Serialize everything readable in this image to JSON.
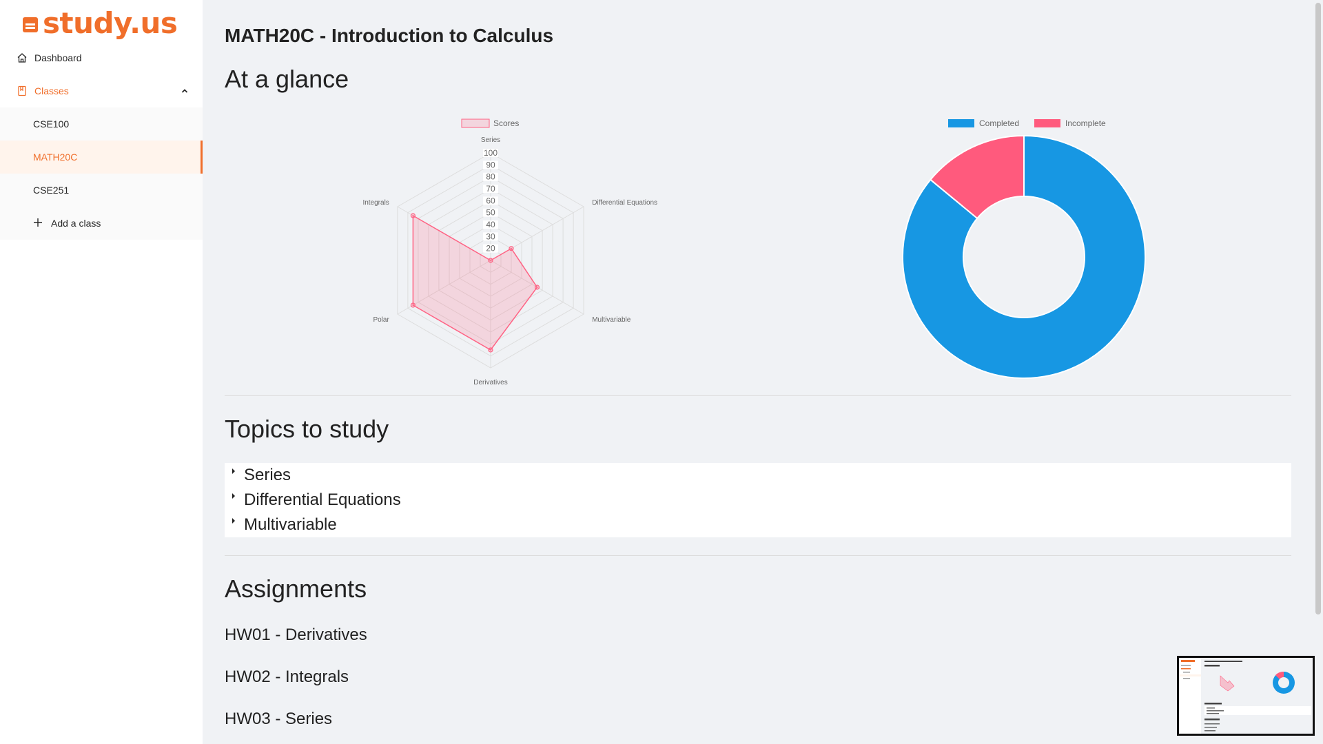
{
  "brand": {
    "name": "study.us",
    "color": "#f06e2a"
  },
  "sidebar": {
    "dashboard_label": "Dashboard",
    "classes_label": "Classes",
    "classes": [
      {
        "label": "CSE100"
      },
      {
        "label": "MATH20C"
      },
      {
        "label": "CSE251"
      }
    ],
    "active_class": "MATH20C",
    "add_class_label": "Add a class"
  },
  "main": {
    "title": "MATH20C - Introduction to Calculus",
    "glance_title": "At a glance",
    "topics_title": "Topics to study",
    "topics": [
      {
        "label": "Series"
      },
      {
        "label": "Differential Equations"
      },
      {
        "label": "Multivariable"
      }
    ],
    "assignments_title": "Assignments",
    "assignments": [
      {
        "label": "HW01 - Derivatives"
      },
      {
        "label": "HW02 - Integrals"
      },
      {
        "label": "HW03 - Series"
      }
    ]
  },
  "chart_data": [
    {
      "type": "radar",
      "axes": [
        "Series",
        "Differential Equations",
        "Multivariable",
        "Derivatives",
        "Polar",
        "Integrals"
      ],
      "series": [
        {
          "name": "Scores",
          "values": [
            10,
            30,
            55,
            85,
            85,
            85
          ],
          "color": "#ff6384"
        }
      ],
      "scale": {
        "min": 10,
        "max": 100,
        "step": 10
      },
      "tick_labels": [
        "20",
        "30",
        "40",
        "50",
        "60",
        "70",
        "80",
        "90",
        "100"
      ],
      "legend": "top"
    },
    {
      "type": "doughnut",
      "categories": [
        "Completed",
        "Incomplete"
      ],
      "values": [
        86,
        14
      ],
      "colors": [
        "#1797e3",
        "#ff5a7d"
      ],
      "legend": "top"
    }
  ]
}
